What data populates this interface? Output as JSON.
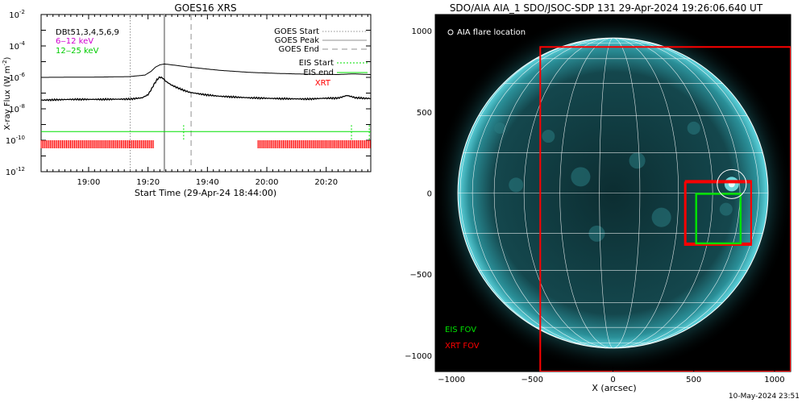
{
  "footer_timestamp": "10-May-2024 23:51",
  "colors": {
    "goes_long": "#000000",
    "goes_short": "#000000",
    "low_channel_legend": "#d000d0",
    "high_channel_legend": "#00cc00",
    "eis": "#00e000",
    "xrt": "#ff0000",
    "goes_markers": "#909090",
    "solar_disk": "#0f3a3f",
    "grid": "#ffffff"
  },
  "chart_data": [
    {
      "type": "line",
      "title": "GOES16 XRS",
      "xlabel": "Start Time (29-Apr-24 18:44:00)",
      "ylabel": "X-ray Flux (W m⁻²)",
      "ylabel_main": "X-ray Flux (W m",
      "ylabel_exp": "-2",
      "ylabel_close": ")",
      "y_scale": "log",
      "ylim_exponent": [
        -12,
        -2
      ],
      "xlim_minutes_from_start": [
        0,
        111
      ],
      "x_ticks": [
        {
          "min": 16,
          "label": "19:00"
        },
        {
          "min": 36,
          "label": "19:20"
        },
        {
          "min": 56,
          "label": "19:40"
        },
        {
          "min": 76,
          "label": "20:00"
        },
        {
          "min": 96,
          "label": "20:20"
        }
      ],
      "y_ticks": [
        {
          "exp": -2,
          "label": "10",
          "sup": "-2"
        },
        {
          "exp": -4,
          "label": "10",
          "sup": "-4"
        },
        {
          "exp": -6,
          "label": "10",
          "sup": "-6"
        },
        {
          "exp": -8,
          "label": "10",
          "sup": "-8"
        },
        {
          "exp": -10,
          "label": "10",
          "sup": "-10"
        },
        {
          "exp": -12,
          "label": "10",
          "sup": "-12"
        }
      ],
      "legend_left": {
        "detectors": "DBt51,3,4,5,6,9",
        "low_channel": "6‒12 keV",
        "high_channel": "12‒25 keV"
      },
      "legend_right": {
        "goes_start": "GOES Start",
        "goes_peak": "GOES Peak",
        "goes_end": "GOES End",
        "eis_start": "EIS Start",
        "eis_end": "EIS end",
        "xrt": "XRT"
      },
      "goes_start_min": 30,
      "goes_peak_min": 41.5,
      "goes_end_min": 50.5,
      "series": [
        {
          "name": "6‒12 keV",
          "x": [
            0,
            20,
            30,
            35,
            37,
            38.5,
            40,
            41.5,
            43,
            46,
            50,
            55,
            60,
            70,
            80,
            90,
            100,
            105,
            111
          ],
          "log_y": [
            -6.0,
            -5.98,
            -5.95,
            -5.85,
            -5.62,
            -5.35,
            -5.2,
            -5.15,
            -5.18,
            -5.25,
            -5.35,
            -5.45,
            -5.55,
            -5.68,
            -5.75,
            -5.8,
            -5.82,
            -5.78,
            -5.82
          ]
        },
        {
          "name": "12‒25 keV",
          "x": [
            0,
            10,
            20,
            30,
            34,
            36,
            37,
            38,
            39,
            40,
            41,
            42,
            44,
            47,
            50,
            55,
            60,
            70,
            80,
            90,
            95,
            100,
            103,
            106,
            111
          ],
          "log_y": [
            -7.45,
            -7.4,
            -7.4,
            -7.38,
            -7.3,
            -7.1,
            -6.8,
            -6.45,
            -6.15,
            -5.98,
            -6.05,
            -6.25,
            -6.5,
            -6.75,
            -6.95,
            -7.1,
            -7.2,
            -7.3,
            -7.35,
            -7.38,
            -7.33,
            -7.32,
            -7.15,
            -7.3,
            -7.35
          ]
        }
      ],
      "eis_baseline_exp": -9.45,
      "eis_marks_min": [
        48,
        104.5,
        110.5
      ],
      "xrt_ranges_min": [
        [
          0,
          38
        ],
        [
          73,
          111
        ]
      ]
    },
    {
      "type": "image",
      "title": "SDO/AIA AIA_1 SDO/JSOC-SDP 131 29-Apr-2024 19:26:06.640 UT",
      "xlabel": "X (arcsec)",
      "ylabel": "",
      "xlim": [
        -1100,
        1100
      ],
      "ylim": [
        -1100,
        1100
      ],
      "x_ticks": [
        -1000,
        -500,
        0,
        500,
        1000
      ],
      "y_ticks": [
        1000,
        500,
        0,
        -500,
        -1000
      ],
      "solar_radius_arcsec": 960,
      "flare_legend": "AIA flare location",
      "fov_legend": {
        "eis": "EIS FOV",
        "xrt": "XRT FOV"
      },
      "flare_location": [
        735,
        55
      ],
      "xrt_fov_large": {
        "x": [
          -450,
          1100
        ],
        "y": [
          -1100,
          900
        ]
      },
      "xrt_fov_small": [
        {
          "x": [
            445,
            855
          ],
          "y": [
            -320,
            65
          ]
        },
        {
          "x": [
            450,
            855
          ],
          "y": [
            -310,
            75
          ]
        }
      ],
      "eis_fov": {
        "x": [
          515,
          790
        ],
        "y": [
          -310,
          -5
        ]
      }
    }
  ]
}
